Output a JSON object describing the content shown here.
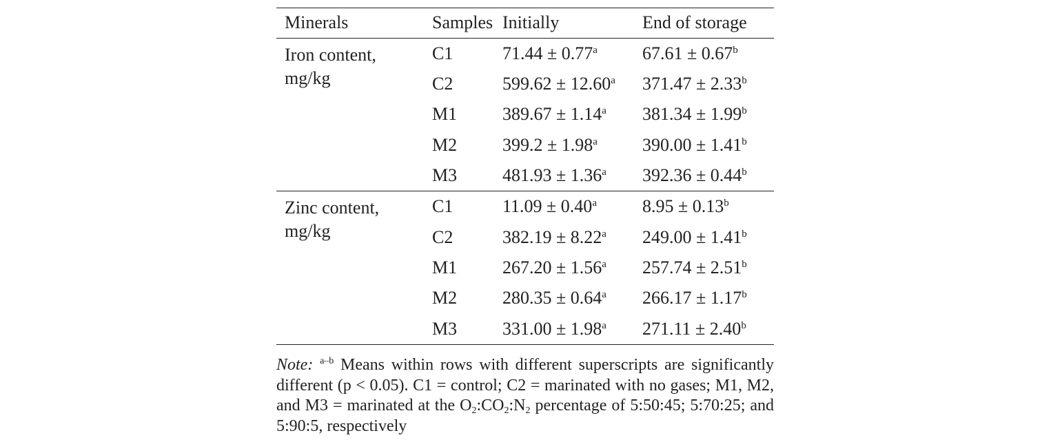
{
  "table": {
    "headers": {
      "minerals": "Minerals",
      "samples": "Samples",
      "initially": "Initially",
      "end_of_storage": "End of storage"
    },
    "groups": [
      {
        "mineral_line1": "Iron content,",
        "mineral_line2": "mg/kg",
        "rows": [
          {
            "sample": "C1",
            "initially": "71.44 ± 0.77",
            "initially_sup": "a",
            "end": "67.61 ± 0.67",
            "end_sup": "b"
          },
          {
            "sample": "C2",
            "initially": "599.62 ± 12.60",
            "initially_sup": "a",
            "end": "371.47 ± 2.33",
            "end_sup": "b"
          },
          {
            "sample": "M1",
            "initially": "389.67 ± 1.14",
            "initially_sup": "a",
            "end": "381.34 ± 1.99",
            "end_sup": "b"
          },
          {
            "sample": "M2",
            "initially": "399.2 ± 1.98",
            "initially_sup": "a",
            "end": "390.00 ± 1.41",
            "end_sup": "b"
          },
          {
            "sample": "M3",
            "initially": "481.93 ± 1.36",
            "initially_sup": "a",
            "end": "392.36 ± 0.44",
            "end_sup": "b"
          }
        ]
      },
      {
        "mineral_line1": "Zinc content,",
        "mineral_line2": "mg/kg",
        "rows": [
          {
            "sample": "C1",
            "initially": "11.09 ± 0.40",
            "initially_sup": "a",
            "end": "8.95 ± 0.13",
            "end_sup": "b"
          },
          {
            "sample": "C2",
            "initially": "382.19 ± 8.22",
            "initially_sup": "a",
            "end": "249.00 ± 1.41",
            "end_sup": "b"
          },
          {
            "sample": "M1",
            "initially": "267.20 ± 1.56",
            "initially_sup": "a",
            "end": "257.74 ± 2.51",
            "end_sup": "b"
          },
          {
            "sample": "M2",
            "initially": "280.35 ± 0.64",
            "initially_sup": "a",
            "end": "266.17 ± 1.17",
            "end_sup": "b"
          },
          {
            "sample": "M3",
            "initially": "331.00 ± 1.98",
            "initially_sup": "a",
            "end": "271.11 ± 2.40",
            "end_sup": "b"
          }
        ]
      }
    ]
  },
  "note": {
    "label": "Note:",
    "sup": "a–b",
    "text1": " Means within rows with different superscripts are significantly different (p < 0.05). C1 = control; C2 = marinated with no gases; M1, M2, and M3 = marinated at the O",
    "sub1": "2",
    "text2": ":CO",
    "sub2": "2",
    "text3": ":N",
    "sub3": "2",
    "text4": " percentage of 5:50:45; 5:70:25; and 5:90:5, respectively"
  }
}
